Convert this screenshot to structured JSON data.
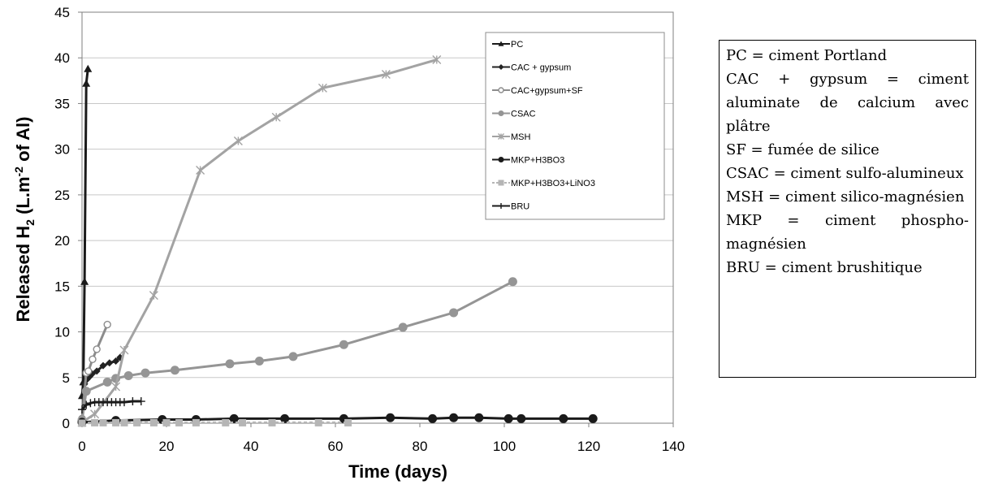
{
  "chart_data": {
    "type": "line",
    "title": "",
    "xlabel": "Time (days)",
    "ylabel_prefix": "Released H",
    "ylabel_sub": "2",
    "ylabel_mid": " (L.m",
    "ylabel_sup": "-2",
    "ylabel_suffix": " of Al)",
    "xlim": [
      0,
      140
    ],
    "ylim": [
      0,
      45
    ],
    "xticks": [
      0,
      20,
      40,
      60,
      80,
      100,
      120,
      140
    ],
    "yticks": [
      0,
      5,
      10,
      15,
      20,
      25,
      30,
      35,
      40,
      45
    ],
    "grid": "horizontal",
    "legend_position": "top-right",
    "series": [
      {
        "name": "PC",
        "color": "#1a1a1a",
        "marker": "triangle",
        "dash": "",
        "x": [
          0,
          0.3,
          0.6,
          1,
          1.4
        ],
        "y": [
          3,
          4.5,
          15.5,
          37.2,
          38.8
        ]
      },
      {
        "name": "CAC + gypsum",
        "color": "#222222",
        "marker": "diamond",
        "dash": "",
        "x": [
          0,
          0.6,
          1.2,
          1.8,
          2.4,
          3.5,
          5,
          6.5,
          8,
          9
        ],
        "y": [
          0.3,
          4.3,
          4.8,
          5.1,
          5.4,
          5.7,
          6.3,
          6.6,
          6.8,
          7.2
        ]
      },
      {
        "name": "CAC+gypsum+SF",
        "color": "#8c8c8c",
        "marker": "circle-open",
        "dash": "",
        "x": [
          0,
          1,
          1.5,
          2.5,
          3.5,
          6
        ],
        "y": [
          0.5,
          5.5,
          5.7,
          7,
          8.1,
          10.8
        ]
      },
      {
        "name": "CSAC",
        "color": "#959595",
        "marker": "circle",
        "dash": "",
        "x": [
          0,
          1,
          6,
          8,
          11,
          15,
          22,
          35,
          42,
          50,
          62,
          76,
          88,
          102
        ],
        "y": [
          0.3,
          3.5,
          4.5,
          4.9,
          5.2,
          5.5,
          5.8,
          6.5,
          6.8,
          7.3,
          8.6,
          10.5,
          12.1,
          15.5
        ]
      },
      {
        "name": "MSH",
        "color": "#a3a3a3",
        "marker": "star",
        "dash": "",
        "x": [
          0,
          3,
          8,
          10,
          17,
          28,
          37,
          46,
          57,
          72,
          84
        ],
        "y": [
          0.1,
          1,
          4,
          8,
          14,
          27.7,
          30.9,
          33.5,
          36.7,
          38.2,
          39.8
        ]
      },
      {
        "name": "MKP+H3BO3",
        "color": "#1a1a1a",
        "marker": "circle",
        "dash": "",
        "x": [
          0,
          8,
          19,
          27,
          36,
          48,
          62,
          73,
          83,
          88,
          94,
          101,
          104,
          114,
          121
        ],
        "y": [
          0.1,
          0.3,
          0.4,
          0.4,
          0.5,
          0.5,
          0.5,
          0.6,
          0.5,
          0.6,
          0.6,
          0.5,
          0.5,
          0.5,
          0.5
        ]
      },
      {
        "name": "MKP+H3BO3+LiNO3",
        "color": "#b5b5b5",
        "marker": "square",
        "dash": "4,3",
        "x": [
          0,
          3,
          5,
          8,
          10,
          13,
          17,
          20,
          23,
          27,
          34,
          38,
          45,
          56,
          63
        ],
        "y": [
          0,
          0.05,
          0.05,
          0.05,
          0.05,
          0.05,
          0.05,
          0.05,
          0.05,
          0.05,
          0.05,
          0.05,
          0.05,
          0.05,
          0.05
        ]
      },
      {
        "name": "BRU",
        "color": "#1a1a1a",
        "marker": "plus",
        "dash": "",
        "x": [
          0,
          1,
          2,
          3,
          4,
          5,
          6,
          7,
          8,
          9,
          10,
          12,
          14
        ],
        "y": [
          1.5,
          2,
          2.2,
          2.3,
          2.3,
          2.3,
          2.3,
          2.3,
          2.3,
          2.3,
          2.3,
          2.4,
          2.4
        ]
      }
    ]
  },
  "glossary": {
    "lines": [
      "PC = ciment Portland",
      "CAC + gypsum = ciment aluminate de calcium avec plâtre",
      "SF = fumée de silice",
      "CSAC = ciment sulfo-alumineux",
      "MSH = ciment silico-magnésien",
      "MKP = ciment phospho-magnésien",
      "BRU = ciment brushitique"
    ]
  }
}
